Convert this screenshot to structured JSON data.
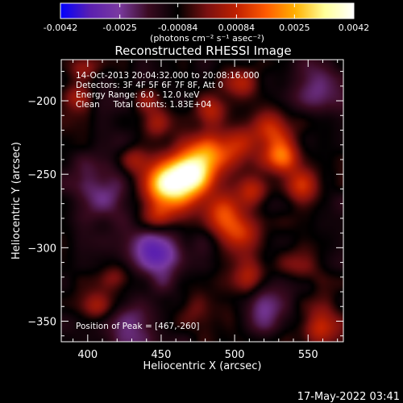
{
  "chart_data": {
    "type": "heatmap",
    "title": "Reconstructed RHESSI Image",
    "xlabel": "Heliocentric X (arcsec)",
    "ylabel": "Heliocentric Y (arcsec)",
    "xlim": [
      382,
      574
    ],
    "ylim": [
      -364,
      -172
    ],
    "x_ticks": [
      400,
      450,
      500,
      550
    ],
    "y_ticks": [
      -200,
      -250,
      -300,
      -350
    ],
    "colorbar": {
      "range": [
        -0.0042,
        0.0042
      ],
      "tick_values": [
        -0.0042,
        -0.0025,
        -0.00084,
        0.00084,
        0.0025,
        0.0042
      ],
      "tick_labels": [
        "-0.0042",
        "-0.0025",
        "-0.00084",
        "0.00084",
        "0.0025",
        "0.0042"
      ],
      "units_label": "(photons cm⁻² s⁻¹ asec⁻²)",
      "colors": [
        "#0000ff",
        "#5a1fb0",
        "#7a3aa0",
        "#3a0a20",
        "#000000",
        "#7a1010",
        "#c02000",
        "#ff5a00",
        "#ffb000",
        "#ffff99",
        "#ffffff"
      ]
    },
    "annotations": [
      "14-Oct-2013 20:04:32.000 to 20:08:16.000",
      "Detectors: 3F 4F 5F 6F 7F 8F, Att 0",
      "Energy Range: 6.0 - 12.0 keV",
      "Clean     Total counts: 1.83E+04"
    ],
    "peak_label": "Position of Peak = [467,-260]",
    "peak": {
      "x": 467,
      "y": -260
    },
    "sources": [
      {
        "x": 455,
        "y": -258,
        "intensity": 1.0,
        "width": 13
      },
      {
        "x": 470,
        "y": -250,
        "intensity": 0.85,
        "width": 10
      },
      {
        "x": 480,
        "y": -238,
        "intensity": 0.55,
        "width": 9
      },
      {
        "x": 498,
        "y": -232,
        "intensity": 0.45,
        "width": 11
      },
      {
        "x": 525,
        "y": -220,
        "intensity": 0.5,
        "width": 10
      },
      {
        "x": 532,
        "y": -237,
        "intensity": 0.55,
        "width": 8
      },
      {
        "x": 545,
        "y": -258,
        "intensity": 0.45,
        "width": 9
      },
      {
        "x": 512,
        "y": -262,
        "intensity": 0.45,
        "width": 8
      },
      {
        "x": 492,
        "y": -277,
        "intensity": 0.5,
        "width": 10
      },
      {
        "x": 505,
        "y": -292,
        "intensity": 0.5,
        "width": 9
      },
      {
        "x": 485,
        "y": -208,
        "intensity": 0.4,
        "width": 8
      },
      {
        "x": 505,
        "y": -188,
        "intensity": 0.35,
        "width": 8
      },
      {
        "x": 445,
        "y": -215,
        "intensity": 0.35,
        "width": 8
      },
      {
        "x": 432,
        "y": -240,
        "intensity": 0.3,
        "width": 7
      },
      {
        "x": 448,
        "y": -280,
        "intensity": 0.3,
        "width": 7
      },
      {
        "x": 397,
        "y": -178,
        "intensity": 0.35,
        "width": 7
      },
      {
        "x": 393,
        "y": -197,
        "intensity": 0.3,
        "width": 7
      },
      {
        "x": 420,
        "y": -320,
        "intensity": 0.25,
        "width": 7
      },
      {
        "x": 407,
        "y": -340,
        "intensity": 0.3,
        "width": 7
      },
      {
        "x": 512,
        "y": -318,
        "intensity": 0.35,
        "width": 9
      },
      {
        "x": 547,
        "y": -312,
        "intensity": 0.3,
        "width": 8
      },
      {
        "x": 557,
        "y": -355,
        "intensity": 0.45,
        "width": 10
      },
      {
        "x": 495,
        "y": -350,
        "intensity": 0.2,
        "width": 7
      },
      {
        "x": 470,
        "y": -340,
        "intensity": 0.2,
        "width": 7
      },
      {
        "x": 440,
        "y": -198,
        "intensity": 0.25,
        "width": 6
      }
    ],
    "negative_regions": [
      {
        "x": 447,
        "y": -302,
        "intensity": 0.6,
        "width": 12
      },
      {
        "x": 410,
        "y": -262,
        "intensity": 0.35,
        "width": 14
      },
      {
        "x": 555,
        "y": -190,
        "intensity": 0.3,
        "width": 12
      },
      {
        "x": 430,
        "y": -350,
        "intensity": 0.3,
        "width": 12
      },
      {
        "x": 520,
        "y": -342,
        "intensity": 0.25,
        "width": 12
      }
    ]
  },
  "footer_timestamp": "17-May-2022 03:41"
}
